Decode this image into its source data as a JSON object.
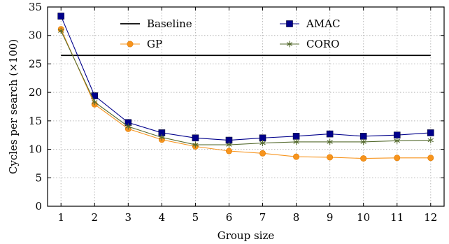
{
  "chart_data": {
    "type": "line",
    "title": "",
    "xlabel": "Group size",
    "ylabel": "Cycles per search (×100)",
    "x": [
      1,
      2,
      3,
      4,
      5,
      6,
      7,
      8,
      9,
      10,
      11,
      12
    ],
    "xticks": [
      "1",
      "2",
      "3",
      "4",
      "5",
      "6",
      "7",
      "8",
      "9",
      "10",
      "11",
      "12"
    ],
    "yticks": [
      "0",
      "5",
      "10",
      "15",
      "20",
      "25",
      "30",
      "35"
    ],
    "xlim": [
      0.6,
      12.4
    ],
    "ylim": [
      0,
      35
    ],
    "grid": true,
    "legend_placement": "top",
    "series": [
      {
        "name": "Baseline",
        "marker": "none",
        "color": "#000000",
        "values": [
          26.5,
          26.5,
          26.5,
          26.5,
          26.5,
          26.5,
          26.5,
          26.5,
          26.5,
          26.5,
          26.5,
          26.5
        ]
      },
      {
        "name": "AMAC",
        "marker": "square",
        "color": "#00008b",
        "values": [
          33.4,
          19.4,
          14.7,
          12.9,
          12.0,
          11.6,
          12.0,
          12.3,
          12.7,
          12.3,
          12.5,
          12.9
        ]
      },
      {
        "name": "GP",
        "marker": "circle",
        "color": "#f7941d",
        "values": [
          31.1,
          17.9,
          13.6,
          11.7,
          10.5,
          9.7,
          9.3,
          8.7,
          8.6,
          8.4,
          8.5,
          8.5
        ]
      },
      {
        "name": "CORO",
        "marker": "star",
        "color": "#556b2f",
        "values": [
          30.8,
          18.3,
          14.0,
          12.1,
          10.8,
          10.8,
          11.1,
          11.3,
          11.3,
          11.3,
          11.5,
          11.6
        ]
      }
    ]
  }
}
